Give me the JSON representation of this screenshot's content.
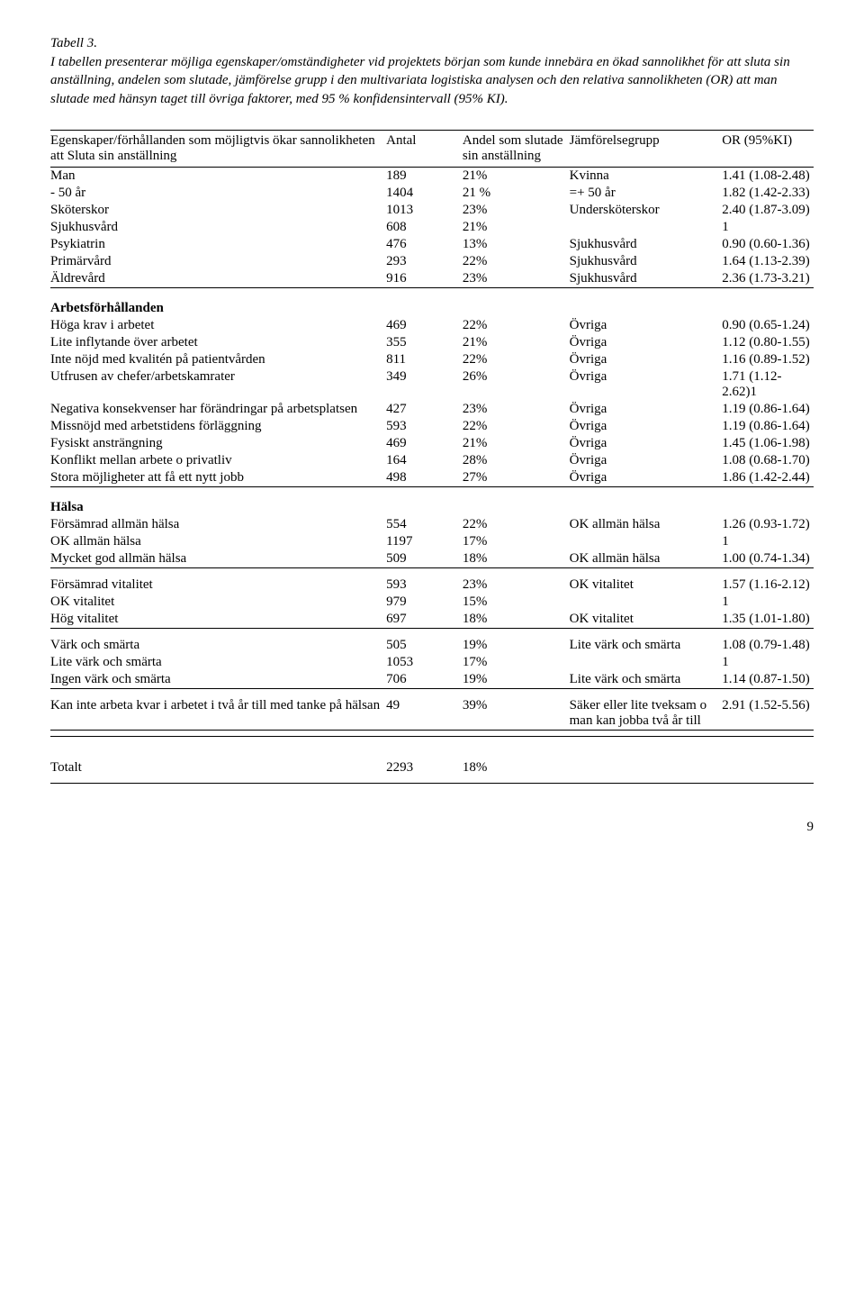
{
  "title": "Tabell 3.",
  "caption": "I tabellen presenterar möjliga egenskaper/omständigheter vid projektets början som kunde innebära en ökad sannolikhet för att sluta sin anställning, andelen som slutade, jämförelse grupp i den multivariata logistiska analysen och den relativa sannolikheten (OR)  att man slutade med hänsyn taget till övriga faktorer, med 95 % konfidensintervall (95% KI).",
  "headers": {
    "label": "Egenskaper/förhållanden som möjligtvis ökar  sannolikheten att Sluta sin anställning",
    "antal": "Antal",
    "andel": "Andel som slutade sin anställning",
    "comp": "Jämförelsegrupp",
    "or": "OR (95%KI)"
  },
  "rows_main": [
    {
      "label": "Man",
      "antal": "189",
      "andel": "21%",
      "comp": "Kvinna",
      "or": "1.41 (1.08-2.48)"
    },
    {
      "label": "- 50 år",
      "antal": "1404",
      "andel": "21 %",
      "comp": "=+ 50 år",
      "or": "1.82 (1.42-2.33)"
    },
    {
      "label": "Sköterskor",
      "antal": "1013",
      "andel": "23%",
      "comp": "Undersköterskor",
      "or": "2.40 (1.87-3.09)"
    },
    {
      "label": "Sjukhusvård",
      "antal": "608",
      "andel": "21%",
      "comp": "",
      "or": "1"
    },
    {
      "label": "Psykiatrin",
      "antal": "476",
      "andel": "13%",
      "comp": "Sjukhusvård",
      "or": "0.90 (0.60-1.36)"
    },
    {
      "label": "Primärvård",
      "antal": "293",
      "andel": "22%",
      "comp": "Sjukhusvård",
      "or": "1.64 (1.13-2.39)"
    },
    {
      "label": "Äldrevård",
      "antal": "916",
      "andel": "23%",
      "comp": "Sjukhusvård",
      "or": "2.36 (1.73-3.21)"
    }
  ],
  "section_arbets": "Arbetsförhållanden",
  "rows_arbets": [
    {
      "label": "Höga krav i arbetet",
      "antal": "469",
      "andel": "22%",
      "comp": "Övriga",
      "or": "0.90 (0.65-1.24)"
    },
    {
      "label": "Lite inflytande över arbetet",
      "antal": "355",
      "andel": "21%",
      "comp": "Övriga",
      "or": "1.12 (0.80-1.55)"
    },
    {
      "label": "Inte nöjd med kvalitén på patientvården",
      "antal": "811",
      "andel": "22%",
      "comp": "Övriga",
      "or": "1.16 (0.89-1.52)"
    },
    {
      "label": "Utfrusen av chefer/arbetskamrater",
      "antal": "349",
      "andel": "26%",
      "comp": "Övriga",
      "or": "1.71 (1.12-2.62)1"
    },
    {
      "label": "Negativa konsekvenser har förändringar på arbetsplatsen",
      "antal": "427",
      "andel": "23%",
      "comp": "Övriga",
      "or": "1.19 (0.86-1.64)"
    },
    {
      "label": "Missnöjd med arbetstidens förläggning",
      "antal": "593",
      "andel": "22%",
      "comp": "Övriga",
      "or": "1.19 (0.86-1.64)"
    },
    {
      "label": "Fysiskt ansträngning",
      "antal": "469",
      "andel": "21%",
      "comp": "Övriga",
      "or": "1.45 (1.06-1.98)"
    },
    {
      "label": "Konflikt mellan arbete o privatliv",
      "antal": "164",
      "andel": "28%",
      "comp": "Övriga",
      "or": "1.08 (0.68-1.70)"
    },
    {
      "label": "Stora möjligheter att få ett nytt jobb",
      "antal": "498",
      "andel": "27%",
      "comp": "Övriga",
      "or": "1.86 (1.42-2.44)"
    }
  ],
  "section_halsa": "Hälsa",
  "rows_halsa_g1": [
    {
      "label": "Försämrad allmän hälsa",
      "antal": "554",
      "andel": "22%",
      "comp": "OK allmän hälsa",
      "or": "1.26 (0.93-1.72)"
    },
    {
      "label": "OK allmän hälsa",
      "antal": "1197",
      "andel": "17%",
      "comp": "",
      "or": "1"
    },
    {
      "label": "Mycket god allmän hälsa",
      "antal": "509",
      "andel": "18%",
      "comp": "OK allmän hälsa",
      "or": "1.00 (0.74-1.34)"
    }
  ],
  "rows_halsa_g2": [
    {
      "label": "Försämrad vitalitet",
      "antal": "593",
      "andel": "23%",
      "comp": "OK vitalitet",
      "or": "1.57 (1.16-2.12)"
    },
    {
      "label": "OK vitalitet",
      "antal": "979",
      "andel": "15%",
      "comp": "",
      "or": "1"
    },
    {
      "label": "Hög vitalitet",
      "antal": "697",
      "andel": "18%",
      "comp": "OK vitalitet",
      "or": "1.35 (1.01-1.80)"
    }
  ],
  "rows_halsa_g3": [
    {
      "label": "Värk och smärta",
      "antal": "505",
      "andel": "19%",
      "comp": "Lite värk och smärta",
      "or": "1.08 (0.79-1.48)"
    },
    {
      "label": "Lite värk och smärta",
      "antal": "1053",
      "andel": "17%",
      "comp": "",
      "or": "1"
    },
    {
      "label": "Ingen värk och smärta",
      "antal": "706",
      "andel": "19%",
      "comp": "Lite värk och smärta",
      "or": "1.14 (0.87-1.50)"
    }
  ],
  "rows_halsa_g4": [
    {
      "label": "Kan inte arbeta kvar i arbetet i två år till med tanke på hälsan",
      "antal": "49",
      "andel": "39%",
      "comp": "Säker eller lite tveksam o man kan jobba två år till",
      "or": "2.91 (1.52-5.56)"
    }
  ],
  "totals": {
    "label": "Totalt",
    "antal": "2293",
    "andel": "18%"
  },
  "pagenum": "9"
}
